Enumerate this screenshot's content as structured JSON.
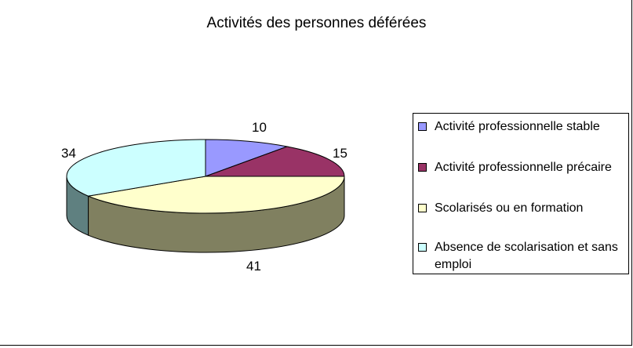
{
  "chart_data": {
    "type": "pie",
    "title": "Activités des personnes déférées",
    "categories": [
      "Activité professionnelle stable",
      "Activité professionnelle précaire",
      "Scolarisés ou en formation",
      "Absence de scolarisation  et sans emploi"
    ],
    "values": [
      10,
      15,
      41,
      34
    ],
    "data_labels": [
      "10",
      "15",
      "41",
      "34"
    ],
    "colors": {
      "tops": [
        "#9999ff",
        "#993366",
        "#ffffcc",
        "#ccffff"
      ],
      "sides": [
        "#5a5a99",
        "#5c1f3d",
        "#808060",
        "#5f8080"
      ]
    },
    "style": "3d-pie",
    "legend_position": "right"
  }
}
